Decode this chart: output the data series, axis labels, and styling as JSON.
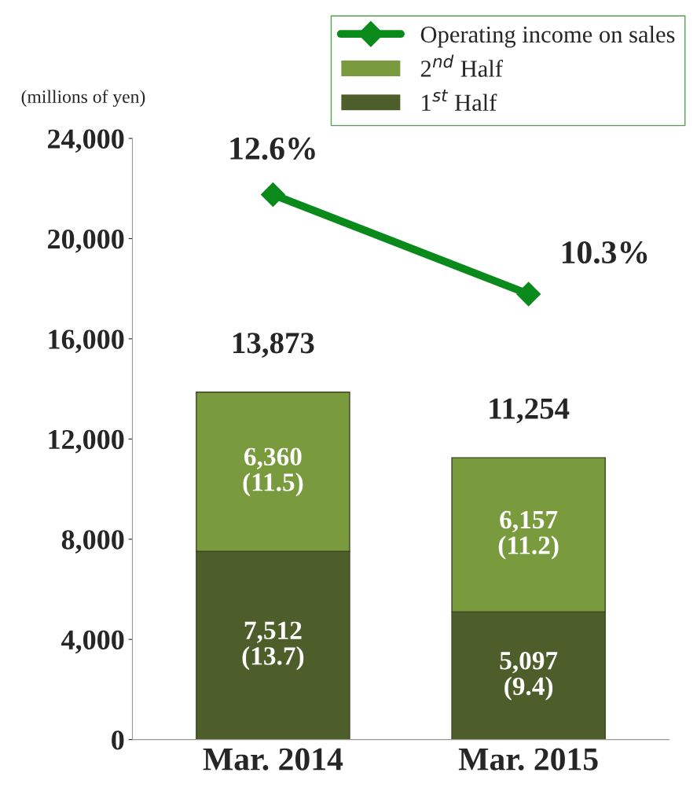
{
  "chart_data": {
    "type": "bar",
    "stacked": true,
    "categories": [
      "Mar. 2014",
      "Mar. 2015"
    ],
    "ylabel": "(millions of yen)",
    "ylim": [
      0,
      24000
    ],
    "yticks": [
      {
        "value": 0,
        "label": "0"
      },
      {
        "value": 4000,
        "label": "4,000"
      },
      {
        "value": 8000,
        "label": "8,000"
      },
      {
        "value": 12000,
        "label": "12,000"
      },
      {
        "value": 16000,
        "label": "16,000"
      },
      {
        "value": 20000,
        "label": "20,000"
      },
      {
        "value": 24000,
        "label": "24,000"
      }
    ],
    "y2lim": [
      0,
      13.9
    ],
    "series": [
      {
        "name": "1$^{st}$ Half",
        "color": "#4e5e2a",
        "values": [
          7512,
          5097
        ],
        "value_labels": [
          "7,512\n(13.7)",
          "5,097\n(9.4)"
        ]
      },
      {
        "name": "2$^{nd}$ Half",
        "color": "#7a9a3e",
        "values": [
          6360,
          6157
        ],
        "value_labels": [
          "6,360\n(11.5)",
          "6,157\n(11.2)"
        ]
      },
      {
        "name": "Operating income on sales",
        "type": "line",
        "axis": "y2",
        "color": "#0a8a1a",
        "marker": "diamond",
        "values": [
          12.6,
          10.3
        ],
        "value_labels": [
          "12.6%",
          "10.3%"
        ]
      }
    ],
    "totals": [
      "13,873",
      "11,254"
    ],
    "legend": "top right",
    "grid": false
  }
}
